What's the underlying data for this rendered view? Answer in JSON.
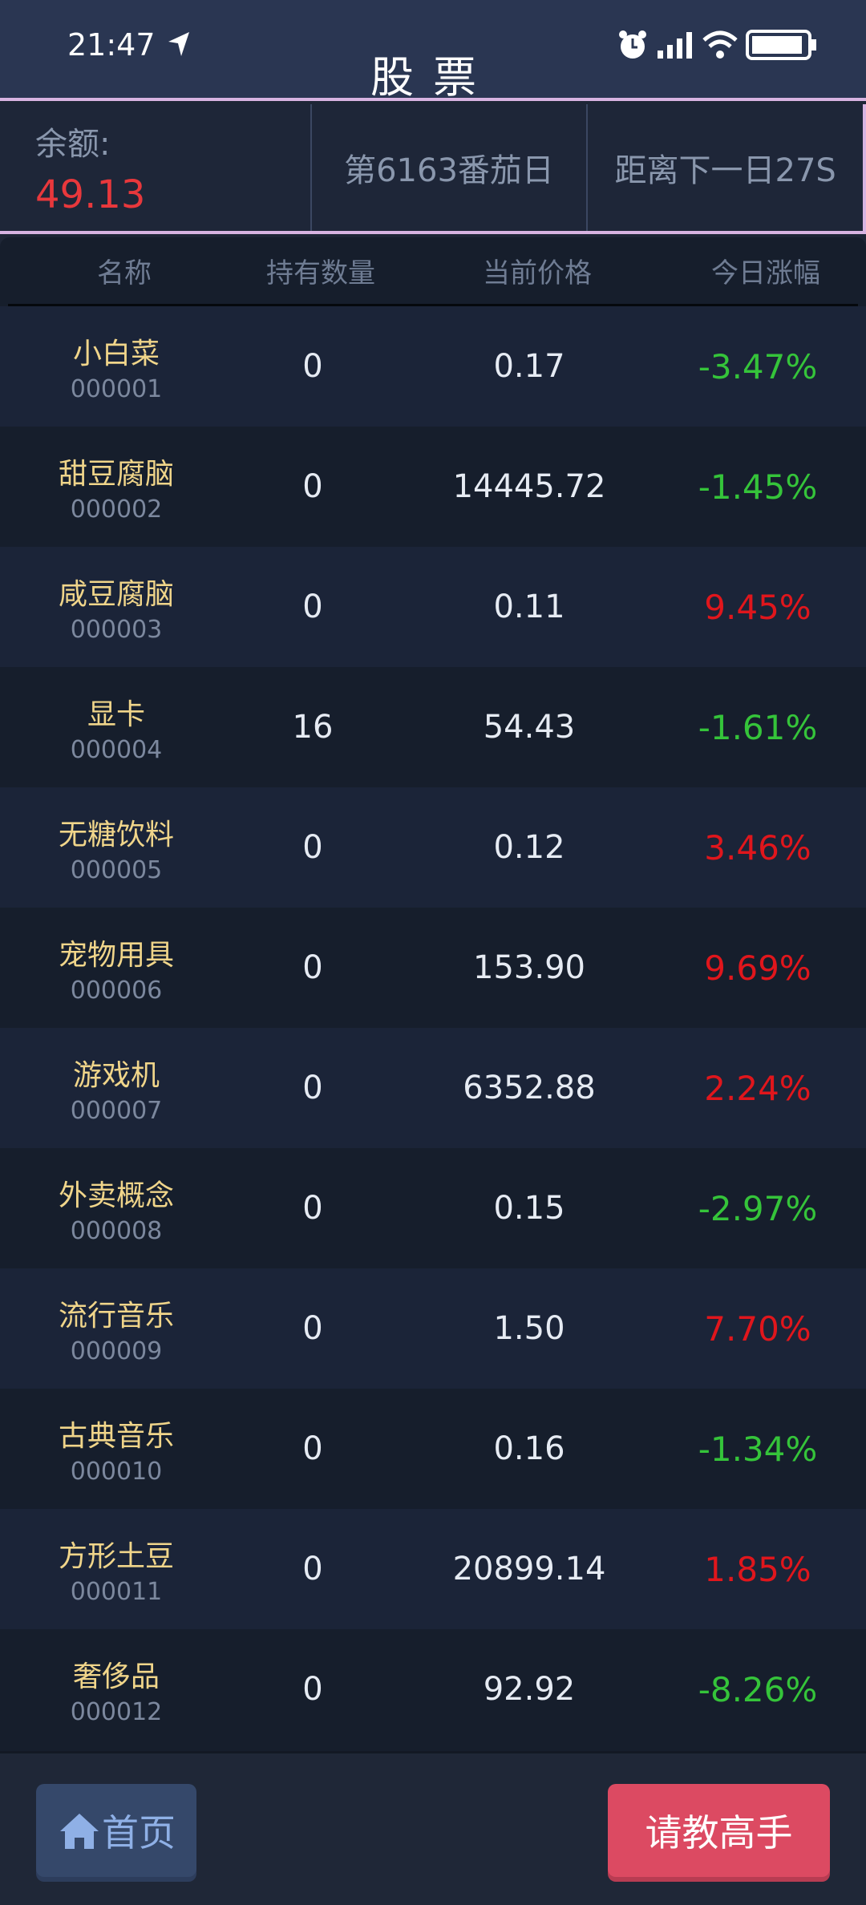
{
  "status_bar": {
    "time": "21:47"
  },
  "header": {
    "title": "股票"
  },
  "stats": {
    "balance_label": "余额:",
    "balance_value": "49.13",
    "day": "第6163番茄日",
    "countdown": "距离下一日27S"
  },
  "table": {
    "columns": [
      "名称",
      "持有数量",
      "当前价格",
      "今日涨幅"
    ],
    "rows": [
      {
        "name": "小白菜",
        "code": "000001",
        "qty": "0",
        "price": "0.17",
        "change": "-3.47%"
      },
      {
        "name": "甜豆腐脑",
        "code": "000002",
        "qty": "0",
        "price": "14445.72",
        "change": "-1.45%"
      },
      {
        "name": "咸豆腐脑",
        "code": "000003",
        "qty": "0",
        "price": "0.11",
        "change": "9.45%"
      },
      {
        "name": "显卡",
        "code": "000004",
        "qty": "16",
        "price": "54.43",
        "change": "-1.61%"
      },
      {
        "name": "无糖饮料",
        "code": "000005",
        "qty": "0",
        "price": "0.12",
        "change": "3.46%"
      },
      {
        "name": "宠物用具",
        "code": "000006",
        "qty": "0",
        "price": "153.90",
        "change": "9.69%"
      },
      {
        "name": "游戏机",
        "code": "000007",
        "qty": "0",
        "price": "6352.88",
        "change": "2.24%"
      },
      {
        "name": "外卖概念",
        "code": "000008",
        "qty": "0",
        "price": "0.15",
        "change": "-2.97%"
      },
      {
        "name": "流行音乐",
        "code": "000009",
        "qty": "0",
        "price": "1.50",
        "change": "7.70%"
      },
      {
        "name": "古典音乐",
        "code": "000010",
        "qty": "0",
        "price": "0.16",
        "change": "-1.34%"
      },
      {
        "name": "方形土豆",
        "code": "000011",
        "qty": "0",
        "price": "20899.14",
        "change": "1.85%"
      },
      {
        "name": "奢侈品",
        "code": "000012",
        "qty": "0",
        "price": "92.92",
        "change": "-8.26%"
      }
    ]
  },
  "footer": {
    "home_label": "首页",
    "ask_label": "请教高手"
  },
  "colors": {
    "up": "#e0161c",
    "down": "#35c43a",
    "balance": "#e8383c"
  }
}
